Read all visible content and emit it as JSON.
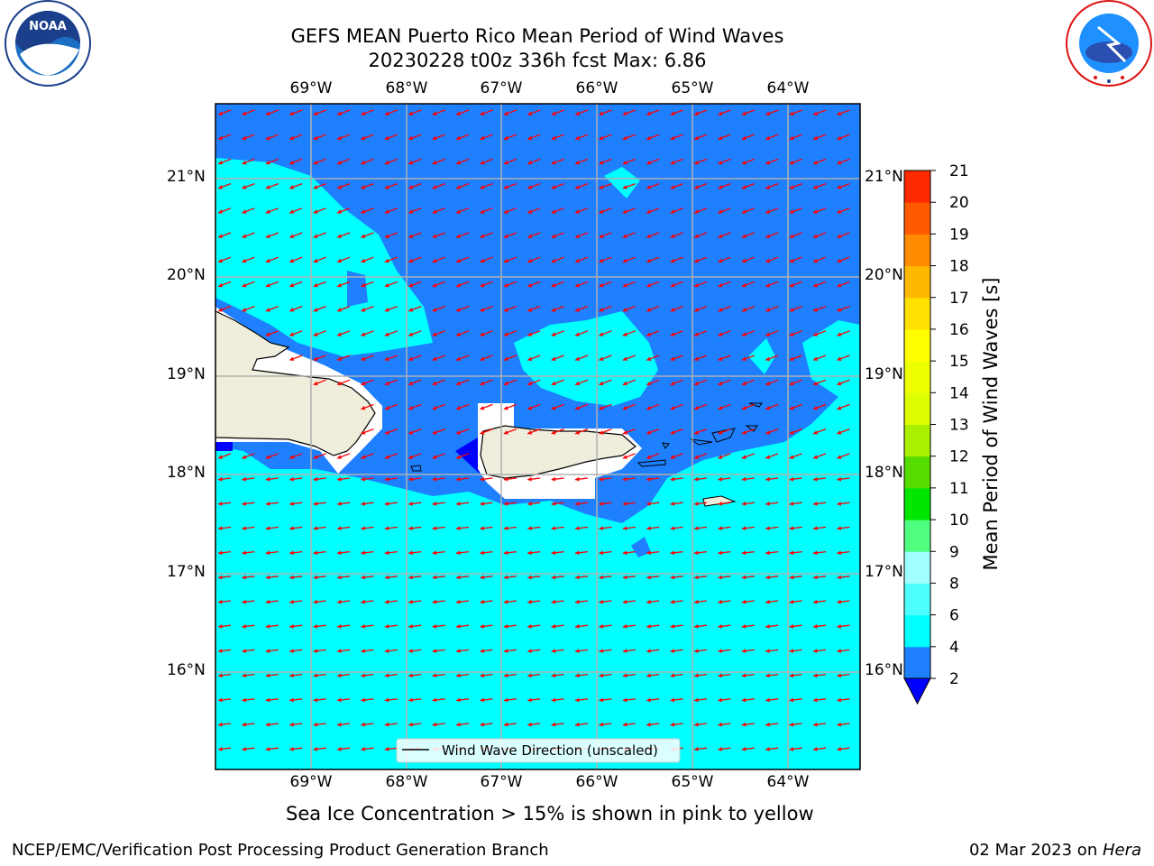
{
  "header": {
    "title_line1": "GEFS MEAN Puerto Rico Mean Period of Wind Waves",
    "title_line2": "20230228 t00z 336h fcst   Max: 6.86"
  },
  "logos": {
    "noaa_text": "NOAA",
    "noaa_ring_text": "NATIONAL OCEANIC AND ATMOSPHERIC ADMINISTRATION · U.S. DEPARTMENT OF COMMERCE",
    "nws_ring_text": "NATIONAL WEATHER SERVICE"
  },
  "map": {
    "lon_labels": [
      "69°W",
      "68°W",
      "67°W",
      "66°W",
      "65°W",
      "64°W"
    ],
    "lat_labels": [
      "21°N",
      "20°N",
      "19°N",
      "18°N",
      "17°N",
      "16°N"
    ],
    "lon_range": [
      "69.8°W",
      "63.3°W"
    ],
    "lat_range": [
      "15.0°N",
      "21.8°N"
    ],
    "grid": true,
    "legend_label": "Wind Wave Direction (unscaled)",
    "legend_placement": "bottom-center",
    "colors": {
      "ocean_low": "#1E7FFF",
      "ocean_mid": "#00FFFF",
      "land": "#EFEEDC",
      "arrow": "#FF0000"
    }
  },
  "colorbar": {
    "label": "Mean Period of Wind Waves [s]",
    "ticks": [
      "2",
      "4",
      "6",
      "8",
      "9",
      "10",
      "11",
      "12",
      "13",
      "14",
      "15",
      "16",
      "17",
      "18",
      "19",
      "20",
      "21"
    ],
    "colors": [
      "#1E7FFF",
      "#00FFFF",
      "#4DFFFF",
      "#A0FFFF",
      "#50FF80",
      "#00E600",
      "#55DD00",
      "#AAEE00",
      "#DDFF00",
      "#EEFF00",
      "#FFFF00",
      "#FFE000",
      "#FFB800",
      "#FF8C00",
      "#FF5A00",
      "#FF2A00"
    ],
    "underflow_color": "#0000FF"
  },
  "notes": {
    "ice_note": "Sea Ice Concentration > 15% is shown in pink to yellow"
  },
  "footer": {
    "left": "NCEP/EMC/Verification Post Processing Product Generation Branch",
    "right_date": "02 Mar 2023 on ",
    "right_machine": "Hera"
  }
}
